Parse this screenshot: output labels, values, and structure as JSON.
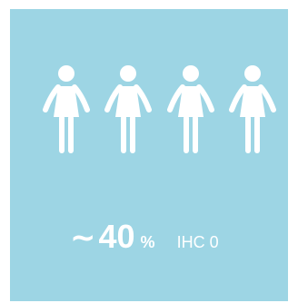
{
  "colors": {
    "panel_background": "#9dd5e4",
    "foreground": "#ffffff"
  },
  "pictogram": {
    "icon": "woman-icon",
    "count": 4
  },
  "stat": {
    "approx_symbol": "~",
    "value": "40",
    "unit": "%",
    "label": "IHC 0"
  }
}
